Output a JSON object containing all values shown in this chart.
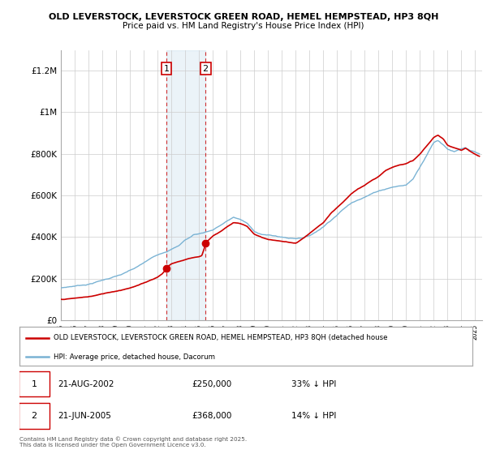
{
  "title1": "OLD LEVERSTOCK, LEVERSTOCK GREEN ROAD, HEMEL HEMPSTEAD, HP3 8QH",
  "title2": "Price paid vs. HM Land Registry's House Price Index (HPI)",
  "xlim_start": 1995.0,
  "xlim_end": 2025.5,
  "ylim_min": 0,
  "ylim_max": 1300000,
  "hpi_color": "#7ab3d4",
  "price_color": "#cc0000",
  "marker1_date": 2002.64,
  "marker2_date": 2005.47,
  "marker1_label": "21-AUG-2002",
  "marker2_label": "21-JUN-2005",
  "marker1_price": 250000,
  "marker2_price": 368000,
  "marker1_pct": "33% ↓ HPI",
  "marker2_pct": "14% ↓ HPI",
  "legend_line1": "OLD LEVERSTOCK, LEVERSTOCK GREEN ROAD, HEMEL HEMPSTEAD, HP3 8QH (detached house",
  "legend_line2": "HPI: Average price, detached house, Dacorum",
  "footnote": "Contains HM Land Registry data © Crown copyright and database right 2025.\nThis data is licensed under the Open Government Licence v3.0.",
  "yticks": [
    0,
    200000,
    400000,
    600000,
    800000,
    1000000,
    1200000
  ],
  "ytick_labels": [
    "£0",
    "£200K",
    "£400K",
    "£600K",
    "£800K",
    "£1M",
    "£1.2M"
  ],
  "xticks": [
    1995,
    1996,
    1997,
    1998,
    1999,
    2000,
    2001,
    2002,
    2003,
    2004,
    2005,
    2006,
    2007,
    2008,
    2009,
    2010,
    2011,
    2012,
    2013,
    2014,
    2015,
    2016,
    2017,
    2018,
    2019,
    2020,
    2021,
    2022,
    2023,
    2024,
    2025
  ],
  "background_color": "#ffffff",
  "grid_color": "#cccccc",
  "hpi_knots_x": [
    1995.0,
    1996.0,
    1997.0,
    1997.5,
    1998.0,
    1998.5,
    1999.0,
    1999.5,
    2000.0,
    2000.5,
    2001.0,
    2001.5,
    2002.0,
    2002.5,
    2003.0,
    2003.5,
    2004.0,
    2004.3,
    2004.6,
    2005.0,
    2005.5,
    2006.0,
    2006.5,
    2007.0,
    2007.5,
    2008.0,
    2008.5,
    2009.0,
    2009.5,
    2010.0,
    2010.5,
    2011.0,
    2011.5,
    2012.0,
    2012.5,
    2013.0,
    2013.5,
    2014.0,
    2014.5,
    2015.0,
    2015.5,
    2016.0,
    2016.5,
    2017.0,
    2017.5,
    2018.0,
    2018.5,
    2019.0,
    2019.5,
    2020.0,
    2020.5,
    2021.0,
    2021.5,
    2022.0,
    2022.3,
    2022.7,
    2023.0,
    2023.5,
    2024.0,
    2024.3,
    2024.6,
    2025.0,
    2025.3
  ],
  "hpi_knots_y": [
    155000,
    165000,
    175000,
    185000,
    195000,
    205000,
    215000,
    225000,
    240000,
    255000,
    275000,
    295000,
    315000,
    330000,
    345000,
    360000,
    390000,
    400000,
    415000,
    420000,
    430000,
    440000,
    460000,
    480000,
    500000,
    490000,
    470000,
    430000,
    420000,
    415000,
    410000,
    405000,
    400000,
    400000,
    405000,
    415000,
    435000,
    460000,
    490000,
    520000,
    550000,
    575000,
    595000,
    610000,
    625000,
    640000,
    650000,
    660000,
    665000,
    670000,
    700000,
    760000,
    820000,
    880000,
    890000,
    870000,
    850000,
    840000,
    850000,
    855000,
    840000,
    830000,
    820000
  ],
  "prop_knots_x": [
    1995.0,
    1996.0,
    1997.0,
    1997.5,
    1998.0,
    1998.5,
    1999.0,
    1999.5,
    2000.0,
    2000.5,
    2001.0,
    2001.5,
    2002.0,
    2002.3,
    2002.64,
    2002.65,
    2002.8,
    2003.0,
    2003.5,
    2004.0,
    2004.5,
    2005.0,
    2005.2,
    2005.47,
    2005.48,
    2005.6,
    2006.0,
    2006.5,
    2007.0,
    2007.5,
    2008.0,
    2008.5,
    2009.0,
    2009.5,
    2010.0,
    2010.5,
    2011.0,
    2011.5,
    2012.0,
    2012.5,
    2013.0,
    2013.5,
    2014.0,
    2014.5,
    2015.0,
    2015.5,
    2016.0,
    2016.5,
    2017.0,
    2017.5,
    2018.0,
    2018.5,
    2019.0,
    2019.5,
    2020.0,
    2020.5,
    2021.0,
    2021.5,
    2022.0,
    2022.3,
    2022.7,
    2023.0,
    2023.5,
    2024.0,
    2024.3,
    2024.6,
    2025.0,
    2025.3
  ],
  "prop_knots_y": [
    100000,
    105000,
    112000,
    118000,
    125000,
    133000,
    140000,
    148000,
    158000,
    168000,
    180000,
    195000,
    210000,
    225000,
    250000,
    251000,
    265000,
    275000,
    285000,
    295000,
    305000,
    310000,
    315000,
    368000,
    369000,
    385000,
    410000,
    430000,
    455000,
    475000,
    470000,
    455000,
    420000,
    405000,
    395000,
    390000,
    385000,
    380000,
    375000,
    395000,
    420000,
    445000,
    470000,
    510000,
    540000,
    570000,
    605000,
    630000,
    645000,
    670000,
    690000,
    720000,
    735000,
    750000,
    755000,
    770000,
    800000,
    840000,
    880000,
    890000,
    870000,
    840000,
    830000,
    820000,
    830000,
    815000,
    800000,
    790000
  ]
}
